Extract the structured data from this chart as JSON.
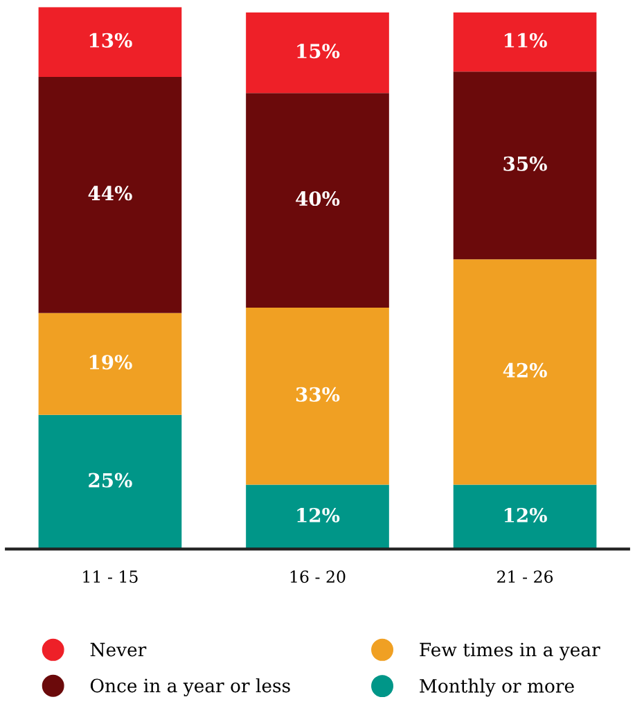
{
  "chart_data": {
    "type": "bar",
    "stacked": true,
    "categories": [
      "11 - 15",
      "16 - 20",
      "21 - 26"
    ],
    "series": [
      {
        "name": "Monthly or more",
        "color": "#009688",
        "values": [
          25,
          12,
          12
        ],
        "value_labels": [
          "25%",
          "12%",
          "12%"
        ]
      },
      {
        "name": "Few times in a year",
        "color": "#f0a023",
        "values": [
          19,
          33,
          42
        ],
        "value_labels": [
          "19%",
          "33%",
          "42%"
        ]
      },
      {
        "name": "Once in a year or less",
        "color": "#6b0a0b",
        "values": [
          44,
          40,
          35
        ],
        "value_labels": [
          "44%",
          "40%",
          "35%"
        ]
      },
      {
        "name": "Never",
        "color": "#ee2028",
        "values": [
          13,
          15,
          11
        ],
        "value_labels": [
          "13%",
          "15%",
          "11%"
        ]
      }
    ],
    "legend": "bottom",
    "tick_labels": "x",
    "grid": false
  }
}
